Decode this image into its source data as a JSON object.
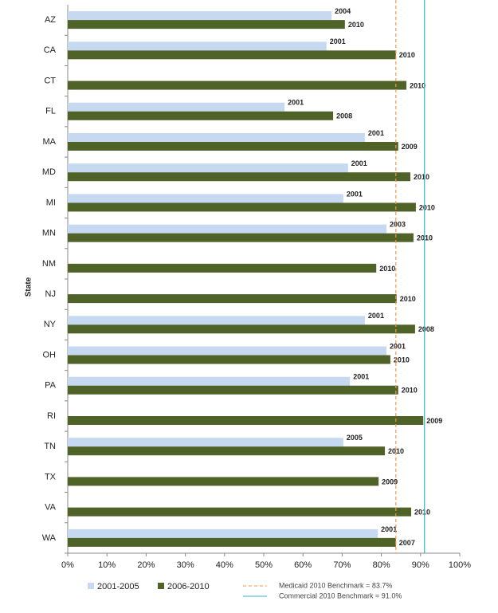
{
  "chart_data": {
    "type": "bar",
    "orientation": "horizontal",
    "y_label": "State",
    "categories": [
      "AZ",
      "CA",
      "CT",
      "FL",
      "MA",
      "MD",
      "MI",
      "MN",
      "NM",
      "NJ",
      "NY",
      "OH",
      "PA",
      "RI",
      "TN",
      "TX",
      "VA",
      "WA"
    ],
    "series": [
      {
        "name": "2001-2005",
        "color": "#c6d9f1",
        "values": [
          67.3,
          66,
          null,
          55.3,
          75.8,
          71.5,
          70.3,
          81.3,
          null,
          null,
          75.8,
          81.3,
          72,
          null,
          70.3,
          null,
          null,
          79.1
        ],
        "years": [
          "2004",
          "2001",
          null,
          "2001",
          "2001",
          "2001",
          "2001",
          "2003",
          null,
          null,
          "2001",
          "2001",
          "2001",
          null,
          "2005",
          null,
          null,
          "2001"
        ]
      },
      {
        "name": "2006-2010",
        "color": "#4f6228",
        "values": [
          70.7,
          83.7,
          86.4,
          67.7,
          84.3,
          87.4,
          88.8,
          88.2,
          78.7,
          83.9,
          88.6,
          82.3,
          84.3,
          90.7,
          80.9,
          79.3,
          87.6,
          83.7
        ],
        "years": [
          "2010",
          "2010",
          "2010",
          "2008",
          "2009",
          "2010",
          "2010",
          "2010",
          "2010",
          "2010",
          "2008",
          "2010",
          "2010",
          "2009",
          "2010",
          "2009",
          "2010",
          "2007"
        ]
      }
    ],
    "benchmarks": [
      {
        "name": "Medicaid 2010 Benchmark = 83.7%",
        "value": 83.7,
        "color": "#f79646",
        "dashed": true
      },
      {
        "name": "Commercial 2010 Benchmark = 91.0%",
        "value": 91.0,
        "color": "#31b6c4",
        "dashed": false
      }
    ],
    "xlim": [
      0,
      100
    ],
    "xticks": [
      {
        "value": 0,
        "label": "0%"
      },
      {
        "value": 10,
        "label": "10%"
      },
      {
        "value": 20,
        "label": "20%"
      },
      {
        "value": 30,
        "label": "30%"
      },
      {
        "value": 40,
        "label": "40%"
      },
      {
        "value": 50,
        "label": "50%"
      },
      {
        "value": 60,
        "label": "60%"
      },
      {
        "value": 70,
        "label": "70%"
      },
      {
        "value": 80,
        "label": "80%"
      },
      {
        "value": 90,
        "label": "90%"
      },
      {
        "value": 100,
        "label": "100%"
      }
    ]
  }
}
